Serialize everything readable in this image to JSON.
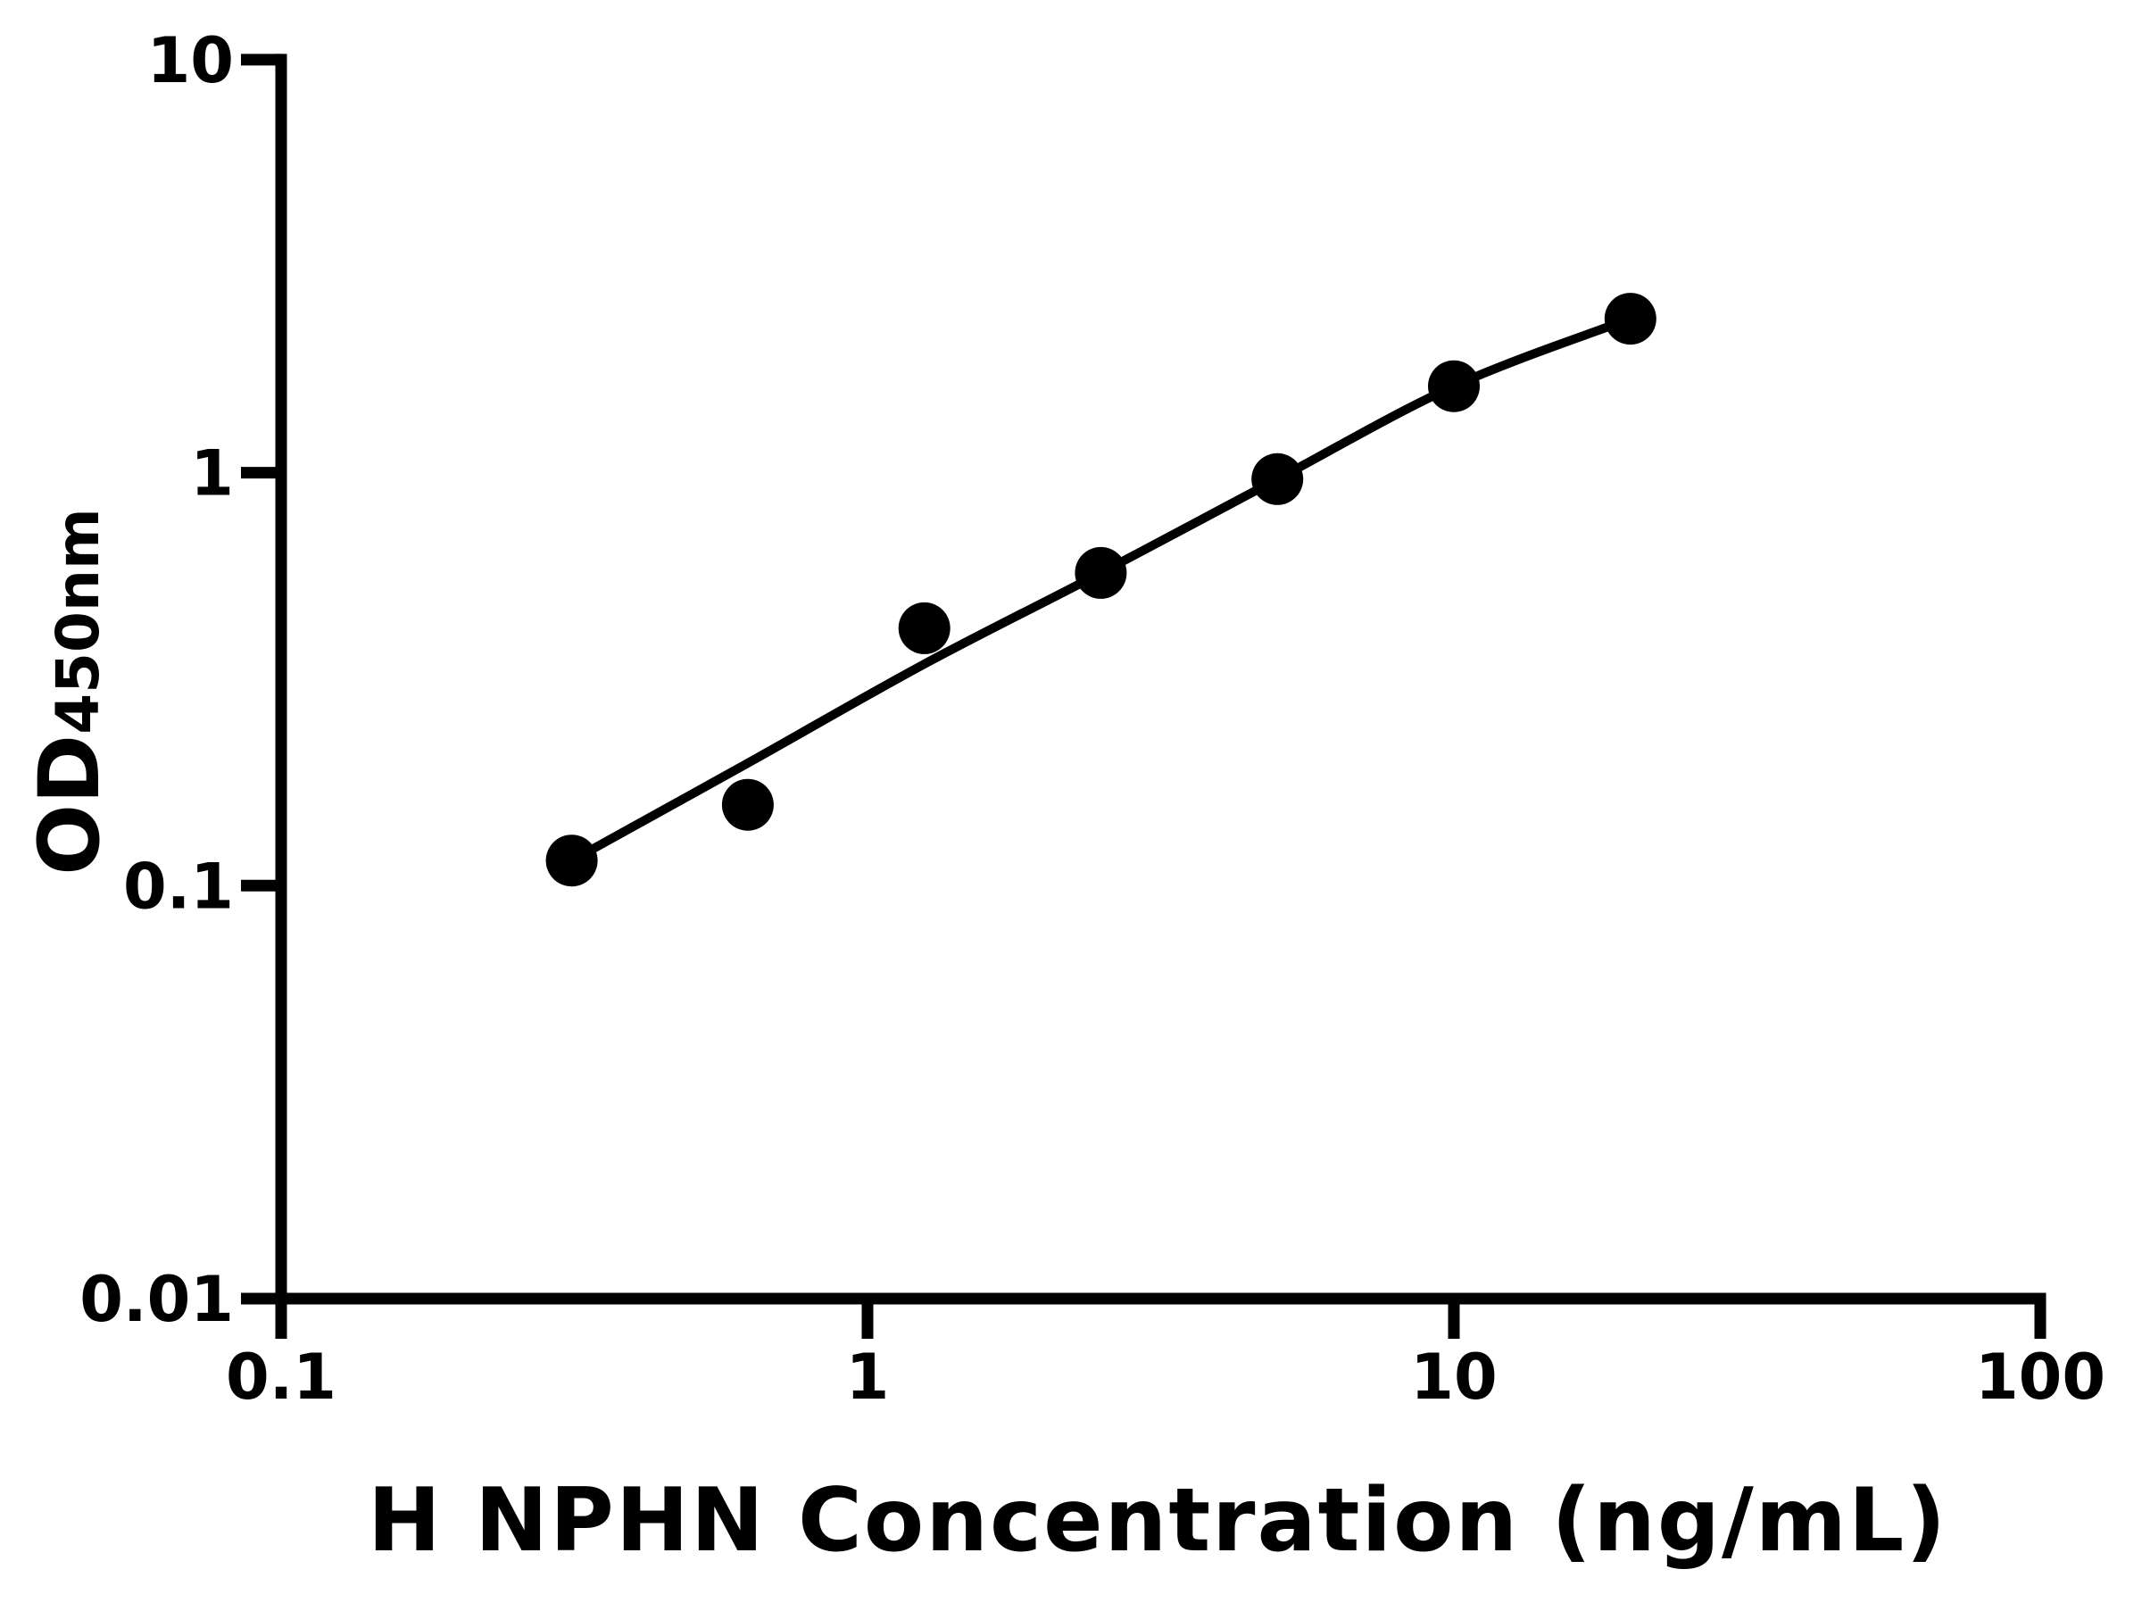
{
  "figure": {
    "background_color": "#ffffff",
    "ink_color": "#000000"
  },
  "chart_data": {
    "type": "scatter",
    "title": "",
    "xlabel": "H NPHN Concentration (ng/mL)",
    "ylabel_main": "OD",
    "ylabel_sub": "450nm",
    "x_scale": "log",
    "y_scale": "log",
    "xlim": [
      0.1,
      100
    ],
    "ylim": [
      0.01,
      10
    ],
    "x_ticks": [
      0.1,
      1,
      10,
      100
    ],
    "x_tick_labels": [
      "0.1",
      "1",
      "10",
      "100"
    ],
    "y_ticks": [
      0.01,
      0.1,
      1,
      10
    ],
    "y_tick_labels": [
      "0.01",
      "0.1",
      "1",
      "10"
    ],
    "grid": false,
    "legend": "none",
    "marker_color": "#000000",
    "line_color": "#000000",
    "series": [
      {
        "name": "standard-points",
        "kind": "scatter",
        "marker": "circle",
        "x": [
          0.313,
          0.625,
          1.25,
          2.5,
          5,
          10,
          20
        ],
        "y": [
          0.115,
          0.157,
          0.42,
          0.572,
          0.965,
          1.62,
          2.36
        ]
      },
      {
        "name": "fit-curve",
        "kind": "line",
        "x": [
          0.313,
          0.625,
          1.25,
          2.5,
          5,
          10,
          20
        ],
        "y": [
          0.115,
          0.198,
          0.344,
          0.572,
          0.965,
          1.62,
          2.36
        ]
      }
    ]
  }
}
